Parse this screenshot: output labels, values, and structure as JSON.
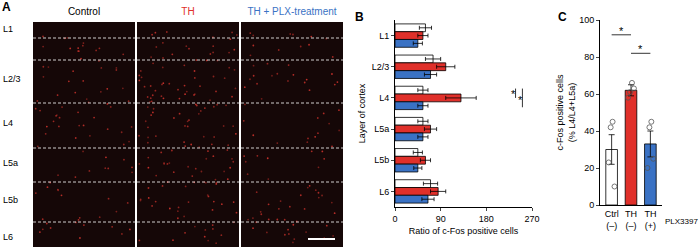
{
  "panel_a": {
    "panel": "A",
    "columns": [
      {
        "label": "Control",
        "color": "#000000"
      },
      {
        "label": "TH",
        "color": "#e0302a"
      },
      {
        "label": "TH + PLX-treatment",
        "color": "#3a72c4"
      }
    ],
    "layers": [
      "L1",
      "L2/3",
      "L4",
      "L5a",
      "L5b",
      "L6"
    ]
  },
  "chart_data": [
    {
      "panel": "B",
      "type": "bar",
      "orientation": "horizontal",
      "categories": [
        "L1",
        "L2/3",
        "L4",
        "L5a",
        "L5b",
        "L6"
      ],
      "series": [
        {
          "name": "Control",
          "color": "#ffffff",
          "values": [
            60,
            75,
            55,
            55,
            45,
            70
          ],
          "errors": [
            12,
            15,
            10,
            10,
            9,
            14
          ]
        },
        {
          "name": "TH",
          "color": "#e0302a",
          "values": [
            55,
            100,
            130,
            70,
            60,
            85
          ],
          "errors": [
            10,
            18,
            30,
            12,
            10,
            15
          ]
        },
        {
          "name": "TH + PLX-treatment",
          "color": "#3a72c4",
          "values": [
            45,
            70,
            55,
            55,
            45,
            65
          ],
          "errors": [
            9,
            12,
            10,
            10,
            8,
            12
          ]
        }
      ],
      "xlabel": "Ratio of c-Fos positive cells",
      "ylabel": "Layer of cortex",
      "xlim": [
        0,
        270
      ],
      "xticks": [
        0,
        90,
        180,
        270
      ],
      "annotations": [
        {
          "text": "*",
          "category": "L4"
        },
        {
          "text": "*",
          "category": "L4"
        }
      ]
    },
    {
      "panel": "C",
      "type": "bar",
      "categories": [
        "Ctrl",
        "TH",
        "TH"
      ],
      "treatment": [
        "(–)",
        "(–)",
        "(+)"
      ],
      "treatment_label": "PLX3397",
      "values": [
        30,
        62,
        33
      ],
      "errors": [
        8,
        3,
        7
      ],
      "points": [
        [
          23,
          45,
          10,
          42
        ],
        [
          58,
          66,
          63,
          61
        ],
        [
          20,
          45,
          25,
          42
        ]
      ],
      "colors": [
        "#ffffff",
        "#e0302a",
        "#3a72c4"
      ],
      "ylabel": [
        "c-Fos positive cells",
        "(% L4/L4+L5a)"
      ],
      "ylim": [
        0,
        100
      ],
      "yticks": [
        0,
        20,
        40,
        60,
        80,
        100
      ],
      "annotations": [
        {
          "text": "*",
          "between": [
            0,
            1
          ]
        },
        {
          "text": "*",
          "between": [
            1,
            2
          ]
        }
      ]
    }
  ]
}
